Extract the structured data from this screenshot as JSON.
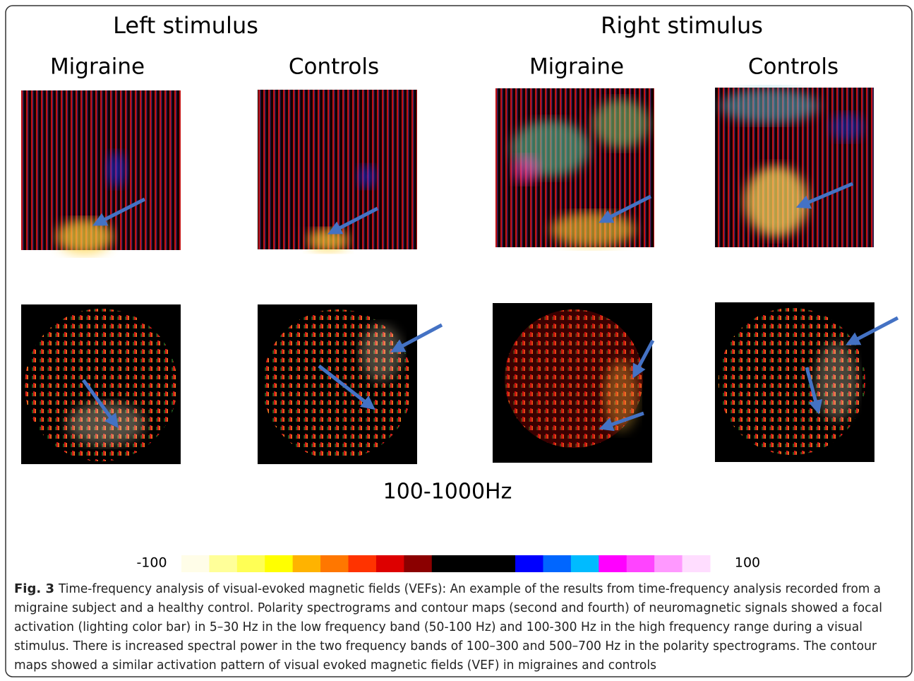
{
  "figure": {
    "headings": {
      "left": "Left stimulus",
      "right": "Right stimulus"
    },
    "panel_labels": [
      "Migraine",
      "Controls",
      "Migraine",
      "Controls"
    ],
    "band_label": "100-1000Hz",
    "colorbar": {
      "min_label": -100,
      "max_label": 100
    },
    "caption": {
      "label": "Fig. 3",
      "lines": [
        "Time-frequency analysis of visual-evoked magnetic fields (VEFs): An example of the results from time-frequency analysis recorded from a",
        "migraine subject and a healthy control. Polarity spectrograms and contour maps (second and fourth) of neuromagnetic signals showed a focal",
        "activation (lighting color bar) in 5–30 Hz in the low frequency band (50-100 Hz) and 100-300 Hz in the high frequency range during a visual",
        "stimulus. There is increased spectral power in the two frequency bands of 100–300 and 500–700 Hz in the polarity spectrograms. The contour",
        "maps showed a similar activation pattern of visual evoked magnetic fields (VEF) in migraines and controls"
      ]
    }
  }
}
